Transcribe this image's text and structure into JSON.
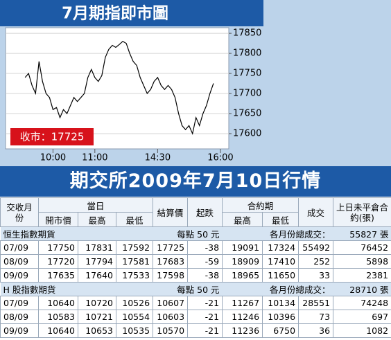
{
  "chart_data": {
    "type": "line",
    "title": "7月期指即市圖",
    "x": [
      20,
      25,
      30,
      35,
      40,
      45,
      50,
      55,
      60,
      65,
      70,
      75,
      80,
      85,
      90,
      95,
      100,
      105,
      110,
      115,
      120,
      125,
      130,
      135,
      140,
      145,
      150,
      155,
      160,
      165,
      170,
      175,
      180,
      185,
      190,
      195,
      200,
      205,
      210,
      215,
      220,
      225,
      230,
      235,
      240,
      245,
      250,
      255,
      260,
      265,
      270,
      275,
      280,
      285,
      290
    ],
    "values": [
      17740,
      17750,
      17720,
      17700,
      17780,
      17730,
      17700,
      17690,
      17660,
      17665,
      17640,
      17660,
      17650,
      17670,
      17690,
      17680,
      17690,
      17700,
      17740,
      17760,
      17740,
      17730,
      17745,
      17790,
      17810,
      17820,
      17815,
      17822,
      17830,
      17825,
      17800,
      17780,
      17770,
      17740,
      17720,
      17700,
      17710,
      17730,
      17740,
      17720,
      17710,
      17720,
      17710,
      17690,
      17650,
      17620,
      17610,
      17620,
      17600,
      17640,
      17620,
      17650,
      17670,
      17700,
      17725
    ],
    "color": "#000000",
    "xlim": [
      -8,
      312
    ],
    "ylim": [
      17562,
      17864
    ],
    "xticks": [
      {
        "value": 60,
        "label": "10:00"
      },
      {
        "value": 120,
        "label": "11:00"
      },
      {
        "value": 210,
        "label": "14:30"
      },
      {
        "value": 300,
        "label": "16:00"
      }
    ],
    "yticks": [
      17600,
      17650,
      17700,
      17750,
      17800,
      17850
    ],
    "grid": true,
    "annotation": "收市：17725"
  },
  "table": {
    "title": "期交所2009年7月10日行情",
    "header": {
      "month": "交收月份",
      "today": "當日",
      "open": "開市價",
      "high": "最高",
      "low": "最低",
      "settle": "結算價",
      "change": "起跌",
      "contract": "合約期",
      "contract_high": "最高",
      "contract_low": "最低",
      "volume": "成交",
      "open_interest": "上日未平倉合約(張)"
    },
    "sections": [
      {
        "name": "恒生指數期貨",
        "point": "每點 50 元",
        "total_label": "各月份總成交：",
        "total": "55827 張",
        "rows": [
          [
            "07/09",
            17750,
            17831,
            17592,
            17725,
            -38,
            19091,
            17324,
            55492,
            76452
          ],
          [
            "08/09",
            17720,
            17794,
            17581,
            17683,
            -59,
            18909,
            17410,
            252,
            5898
          ],
          [
            "09/09",
            17635,
            17640,
            17533,
            17598,
            -38,
            18965,
            11650,
            33,
            2381
          ]
        ]
      },
      {
        "name": "H 股指數期貨",
        "point": "每點 50 元",
        "total_label": "各月份總成交：",
        "total": "28710 張",
        "rows": [
          [
            "07/09",
            10640,
            10720,
            10526,
            10607,
            -21,
            11267,
            10134,
            28551,
            74248
          ],
          [
            "08/09",
            10583,
            10721,
            10554,
            10603,
            -21,
            11246,
            10396,
            73,
            697
          ],
          [
            "09/09",
            10640,
            10653,
            10535,
            10570,
            -21,
            11236,
            6750,
            36,
            1082
          ]
        ]
      }
    ]
  }
}
